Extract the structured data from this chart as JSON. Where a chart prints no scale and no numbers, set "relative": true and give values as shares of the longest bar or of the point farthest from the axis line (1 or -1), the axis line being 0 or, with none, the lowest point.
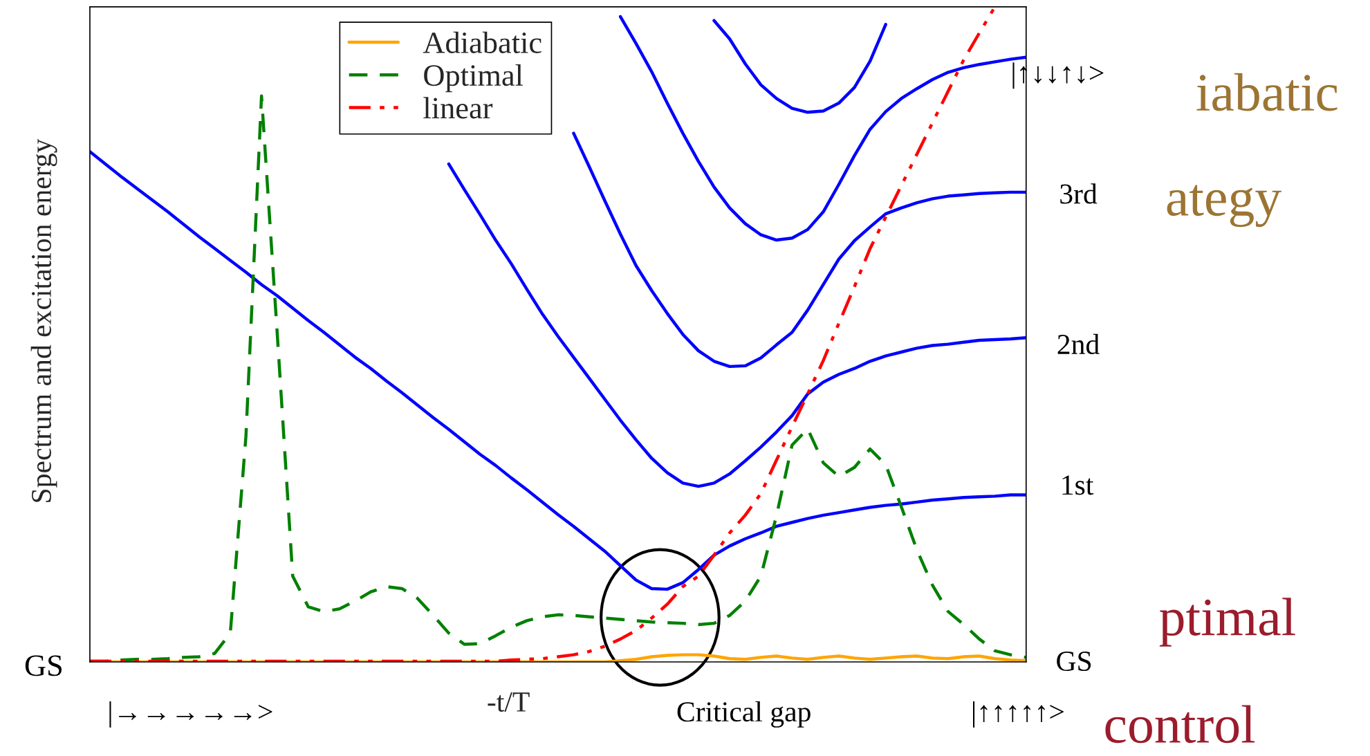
{
  "chart_data": {
    "type": "line",
    "relative": true,
    "ylabel": "Spectrum and excitation energy",
    "xlabel": "-t/T",
    "categories": [
      null,
      null,
      null,
      null,
      null,
      null,
      null,
      null,
      null,
      null,
      null,
      null,
      null,
      null,
      null,
      null,
      null,
      null,
      null,
      null,
      null,
      null,
      null,
      null,
      null,
      null,
      null,
      null,
      null,
      null,
      null,
      null,
      null,
      null,
      null,
      null,
      null,
      null,
      null,
      null,
      null,
      null,
      null,
      null,
      null,
      null,
      null,
      null,
      null,
      null,
      null,
      null,
      null,
      null,
      null,
      null,
      null,
      null,
      null,
      null,
      null
    ],
    "legend": "top",
    "grid": false,
    "series": [
      {
        "color": "#0000ff",
        "line_style": "solid",
        "values": [
          0.779,
          0.76,
          0.741,
          0.723,
          0.705,
          0.687,
          0.668,
          0.649,
          0.631,
          0.613,
          0.595,
          0.576,
          0.559,
          0.54,
          0.521,
          0.503,
          0.484,
          0.465,
          0.448,
          0.429,
          0.411,
          0.392,
          0.373,
          0.355,
          0.336,
          0.317,
          0.3,
          0.281,
          0.263,
          0.244,
          0.225,
          0.207,
          0.188,
          0.169,
          0.147,
          0.125,
          0.112,
          0.111,
          0.121,
          0.141,
          0.163,
          0.177,
          0.188,
          0.197,
          0.207,
          0.213,
          0.219,
          0.224,
          0.228,
          0.232,
          0.236,
          0.239,
          0.241,
          0.244,
          0.247,
          0.249,
          0.251,
          0.252,
          0.253,
          0.255,
          0.255
        ]
      },
      {
        "color": "#0000ff",
        "line_style": "solid",
        "values": [
          null,
          null,
          null,
          null,
          null,
          null,
          null,
          null,
          null,
          null,
          null,
          null,
          null,
          null,
          null,
          null,
          null,
          null,
          null,
          null,
          null,
          null,
          null,
          0.76,
          0.721,
          0.683,
          0.644,
          0.608,
          0.569,
          0.531,
          0.497,
          0.465,
          0.433,
          0.401,
          0.369,
          0.339,
          0.311,
          0.289,
          0.273,
          0.268,
          0.273,
          0.287,
          0.307,
          0.328,
          0.351,
          0.376,
          0.409,
          0.427,
          0.439,
          0.448,
          0.459,
          0.467,
          0.473,
          0.479,
          0.483,
          0.485,
          0.488,
          0.491,
          0.492,
          0.493,
          0.495
        ]
      },
      {
        "color": "#0000ff",
        "line_style": "solid",
        "values": [
          null,
          null,
          null,
          null,
          null,
          null,
          null,
          null,
          null,
          null,
          null,
          null,
          null,
          null,
          null,
          null,
          null,
          null,
          null,
          null,
          null,
          null,
          null,
          null,
          null,
          null,
          null,
          null,
          null,
          null,
          null,
          0.807,
          0.756,
          0.704,
          0.653,
          0.605,
          0.567,
          0.532,
          0.5,
          0.475,
          0.459,
          0.451,
          0.452,
          0.464,
          0.484,
          0.503,
          0.537,
          0.576,
          0.615,
          0.643,
          0.664,
          0.684,
          0.693,
          0.701,
          0.707,
          0.711,
          0.713,
          0.715,
          0.716,
          0.717,
          0.717
        ]
      },
      {
        "color": "#0000ff",
        "line_style": "solid",
        "values": [
          null,
          null,
          null,
          null,
          null,
          null,
          null,
          null,
          null,
          null,
          null,
          null,
          null,
          null,
          null,
          null,
          null,
          null,
          null,
          null,
          null,
          null,
          null,
          null,
          null,
          null,
          null,
          null,
          null,
          null,
          null,
          null,
          null,
          null,
          0.985,
          0.944,
          0.901,
          0.853,
          0.807,
          0.764,
          0.725,
          0.693,
          0.669,
          0.652,
          0.644,
          0.647,
          0.66,
          0.687,
          0.729,
          0.773,
          0.813,
          0.84,
          0.86,
          0.875,
          0.889,
          0.9,
          0.907,
          0.912,
          0.916,
          0.92,
          0.923
        ]
      },
      {
        "color": "#0000ff",
        "line_style": "solid",
        "values": [
          null,
          null,
          null,
          null,
          null,
          null,
          null,
          null,
          null,
          null,
          null,
          null,
          null,
          null,
          null,
          null,
          null,
          null,
          null,
          null,
          null,
          null,
          null,
          null,
          null,
          null,
          null,
          null,
          null,
          null,
          null,
          null,
          null,
          null,
          null,
          null,
          null,
          null,
          null,
          null,
          0.979,
          0.951,
          0.913,
          0.881,
          0.86,
          0.845,
          0.839,
          0.841,
          0.853,
          0.877,
          0.917,
          0.973,
          null,
          null,
          null,
          null,
          null,
          null,
          null,
          null,
          null
        ]
      },
      {
        "name": "Adiabatic",
        "color": "#ffa500",
        "line_style": "solid",
        "values": [
          0,
          0,
          0,
          0,
          0,
          0,
          0,
          0,
          0,
          0,
          0,
          0,
          0,
          0,
          0,
          0,
          0,
          0,
          0,
          0,
          0,
          0,
          0,
          0,
          0,
          0,
          0,
          0,
          0,
          0,
          0,
          0,
          0,
          0,
          0.002,
          0.004,
          0.008,
          0.01,
          0.011,
          0.011,
          0.009,
          0.005,
          0.004,
          0.007,
          0.009,
          0.006,
          0.004,
          0.007,
          0.009,
          0.006,
          0.004,
          0.006,
          0.008,
          0.009,
          0.006,
          0.005,
          0.008,
          0.009,
          0.005,
          0.003,
          0.002
        ]
      },
      {
        "name": "Optimal",
        "color": "#008000",
        "line_style": "dashed",
        "values": [
          0.001,
          0.001,
          0.003,
          0.004,
          0.004,
          0.005,
          0.007,
          0.008,
          0.013,
          0.044,
          0.344,
          0.864,
          0.504,
          0.131,
          0.084,
          0.077,
          0.081,
          0.093,
          0.107,
          0.115,
          0.112,
          0.097,
          0.071,
          0.044,
          0.027,
          0.028,
          0.04,
          0.053,
          0.063,
          0.069,
          0.072,
          0.071,
          0.069,
          0.067,
          0.065,
          0.063,
          0.061,
          0.06,
          0.059,
          0.057,
          0.059,
          0.071,
          0.093,
          0.131,
          0.223,
          0.331,
          0.356,
          0.304,
          0.283,
          0.297,
          0.325,
          0.301,
          0.237,
          0.171,
          0.117,
          0.077,
          0.057,
          0.035,
          0.017,
          0.011,
          0.007
        ]
      },
      {
        "name": "linear",
        "color": "#ff0000",
        "line_style": "dashdot",
        "values": [
          0.001,
          0.001,
          0.001,
          0.001,
          0.001,
          0.001,
          0.001,
          0.001,
          0.001,
          0.001,
          0.001,
          0.001,
          0.001,
          0.001,
          0.001,
          0.001,
          0.001,
          0.001,
          0.001,
          0.001,
          0.001,
          0.001,
          0.001,
          0.001,
          0.001,
          0.001,
          0.001,
          0.003,
          0.004,
          0.005,
          0.008,
          0.011,
          0.016,
          0.024,
          0.035,
          0.048,
          0.067,
          0.088,
          0.115,
          0.131,
          0.163,
          0.197,
          0.224,
          0.257,
          0.308,
          0.359,
          0.409,
          0.46,
          0.517,
          0.573,
          0.631,
          0.679,
          0.727,
          0.775,
          0.823,
          0.871,
          0.919,
          0.96,
          1.0,
          null,
          null
        ]
      }
    ],
    "annotations": [
      "GS",
      "|→→→→→>",
      "Critical gap",
      "|↑↑↑↑↑>",
      "iabatic",
      "ategy",
      "ptimal",
      "control",
      "GS",
      "1st",
      "2nd",
      "3rd",
      "|↑↓↓↑↓>"
    ]
  }
}
